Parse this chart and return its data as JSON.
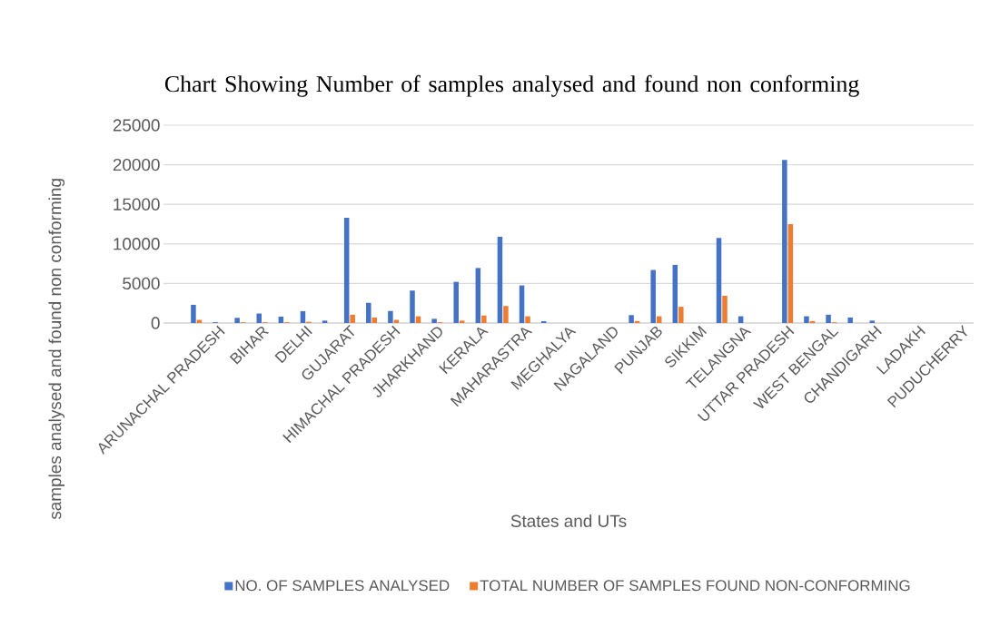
{
  "chart_data": {
    "type": "bar",
    "title": "Chart Showing Number of samples analysed and found non conforming",
    "xlabel": "States and UTs",
    "ylabel": "samples analysed and found non conforming",
    "categories": [
      null,
      null,
      "ARUNACHAL PRADESH",
      null,
      "BIHAR",
      null,
      "DELHI",
      null,
      "GUJARAT",
      null,
      "HIMACHAL PRADESH",
      null,
      "JHARKHAND",
      null,
      "KERALA",
      null,
      "MAHARASTRA",
      null,
      "MEGHALYA",
      null,
      "NAGALAND",
      null,
      "PUNJAB",
      null,
      "SIKKIM",
      null,
      "TELANGNA",
      null,
      "UTTAR PRADESH",
      null,
      "WEST BENGAL",
      null,
      "CHANDIGARH",
      null,
      "LADAKH",
      null,
      "PUDUCHERRY"
    ],
    "series": [
      {
        "name": "NO. OF SAMPLES ANALYSED",
        "color": "#4472c4",
        "values": [
          0,
          2300,
          100,
          650,
          1200,
          800,
          1500,
          300,
          13300,
          2550,
          1520,
          4100,
          530,
          5200,
          6950,
          10900,
          4750,
          230,
          0,
          0,
          0,
          1000,
          6700,
          7350,
          0,
          10750,
          850,
          0,
          20600,
          850,
          1050,
          700,
          300,
          0,
          0,
          0,
          0
        ]
      },
      {
        "name": "TOTAL NUMBER OF SAMPLES FOUND NON-CONFORMING",
        "color": "#ed7d31",
        "values": [
          0,
          400,
          0,
          100,
          100,
          100,
          150,
          0,
          1050,
          700,
          400,
          850,
          100,
          300,
          950,
          2150,
          850,
          0,
          0,
          0,
          0,
          250,
          850,
          2050,
          0,
          3450,
          0,
          0,
          12500,
          250,
          100,
          0,
          0,
          0,
          0,
          0,
          0
        ]
      }
    ],
    "ylim": [
      0,
      25000
    ],
    "yticks": [
      0,
      5000,
      10000,
      15000,
      20000,
      25000
    ],
    "grid": "y",
    "legend": "bottom"
  }
}
